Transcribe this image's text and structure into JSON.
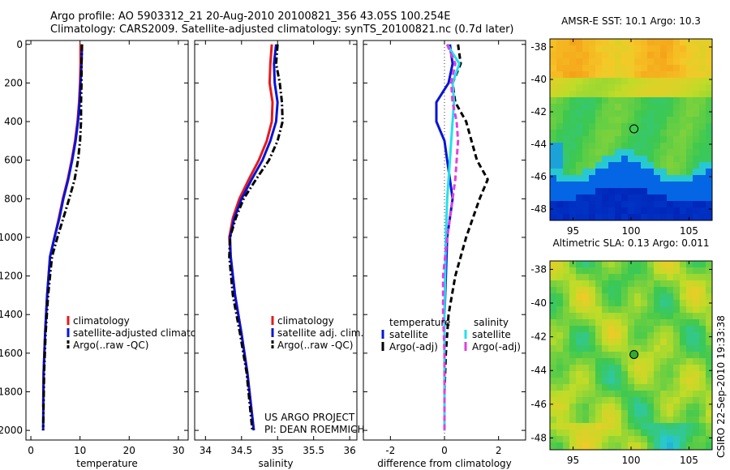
{
  "header": {
    "title_line1": "Argo profile: AO 5903312_21 20-Aug-2010 20100821_356 43.05S 100.254E",
    "title_line2": "Climatology: CARS2009. Satellite-adjusted climatology: synTS_20100821.nc (0.7d later)"
  },
  "project_credit": [
    "US ARGO PROJECT",
    "PI: DEAN ROEMMICH"
  ],
  "side_stamp": "CSIRO 22-Sep-2010 19:33:38",
  "colors": {
    "climatology": "#e41a1c",
    "satellite": "#0a14d6",
    "argo": "#000000",
    "satellite_salinity": "#22e0ee",
    "argo_salinity_adj": "#e040e0"
  },
  "chart_data": [
    {
      "type": "line",
      "id": "temperature",
      "xlabel": "temperature",
      "ylabel": "",
      "xlim": [
        -1,
        32
      ],
      "ylim": [
        2050,
        -20
      ],
      "xticks": [
        0,
        10,
        20,
        30
      ],
      "yticks": [
        0,
        200,
        400,
        600,
        800,
        1000,
        1200,
        1400,
        1600,
        1800,
        2000
      ],
      "legend_position": "lower-right",
      "series": [
        {
          "name": "climatology",
          "color": "#e41a1c",
          "style": "solid",
          "x": [
            10.1,
            10.1,
            10.0,
            9.8,
            9.5,
            9.0,
            8.3,
            7.5,
            6.5,
            5.7,
            4.8,
            3.9,
            3.3,
            2.9,
            2.6,
            2.5
          ],
          "y": [
            0,
            100,
            200,
            300,
            400,
            500,
            600,
            700,
            800,
            900,
            1000,
            1100,
            1300,
            1500,
            1700,
            1880
          ]
        },
        {
          "name": "satellite-adjusted climatology",
          "color": "#0a14d6",
          "style": "solid",
          "x": [
            10.4,
            10.3,
            10.1,
            9.9,
            9.6,
            9.1,
            8.4,
            7.6,
            6.6,
            5.8,
            4.8,
            3.9,
            3.3,
            2.9,
            2.6,
            2.5
          ],
          "y": [
            0,
            100,
            200,
            300,
            400,
            500,
            600,
            700,
            800,
            900,
            1000,
            1100,
            1300,
            1500,
            1700,
            2000
          ]
        },
        {
          "name": "Argo(..raw -QC)",
          "color": "#000000",
          "style": "dashdot",
          "x": [
            10.4,
            10.3,
            10.3,
            10.2,
            10.2,
            10.0,
            9.6,
            8.9,
            7.8,
            6.6,
            5.4,
            4.3,
            3.5,
            3.0,
            2.7,
            2.5
          ],
          "y": [
            0,
            100,
            200,
            300,
            400,
            500,
            600,
            700,
            800,
            900,
            1000,
            1100,
            1300,
            1500,
            1700,
            2000
          ]
        }
      ]
    },
    {
      "type": "line",
      "id": "salinity",
      "xlabel": "salinity",
      "ylabel": "",
      "xlim": [
        33.85,
        36.1
      ],
      "ylim": [
        2050,
        -20
      ],
      "xticks": [
        34,
        34.5,
        35,
        35.5,
        36
      ],
      "yticks": [
        0,
        200,
        400,
        600,
        800,
        1000,
        1200,
        1400,
        1600,
        1800,
        2000
      ],
      "legend_position": "lower-right",
      "series": [
        {
          "name": "climatology",
          "color": "#e41a1c",
          "style": "solid",
          "x": [
            34.92,
            34.9,
            34.89,
            34.93,
            34.92,
            34.85,
            34.74,
            34.6,
            34.47,
            34.38,
            34.33,
            34.35,
            34.41,
            34.5,
            34.58,
            34.67
          ],
          "y": [
            0,
            100,
            200,
            300,
            400,
            500,
            600,
            700,
            800,
            900,
            1000,
            1100,
            1300,
            1500,
            1700,
            2000
          ]
        },
        {
          "name": "satellite adj. clim.",
          "color": "#0a14d6",
          "style": "solid",
          "x": [
            34.98,
            34.95,
            34.96,
            35.0,
            34.98,
            34.9,
            34.79,
            34.64,
            34.5,
            34.4,
            34.34,
            34.35,
            34.41,
            34.5,
            34.58,
            34.67
          ],
          "y": [
            0,
            100,
            200,
            300,
            400,
            500,
            600,
            700,
            800,
            900,
            1000,
            1100,
            1300,
            1500,
            1700,
            2000
          ]
        },
        {
          "name": "Argo(..raw -QC)",
          "color": "#000000",
          "style": "dashdot",
          "x": [
            35.0,
            34.98,
            35.03,
            35.06,
            35.07,
            35.0,
            34.88,
            34.7,
            34.53,
            34.42,
            34.34,
            34.33,
            34.38,
            34.48,
            34.57,
            34.65
          ],
          "y": [
            0,
            100,
            200,
            300,
            400,
            500,
            600,
            700,
            800,
            900,
            1000,
            1100,
            1300,
            1500,
            1700,
            2000
          ]
        }
      ]
    },
    {
      "type": "line",
      "id": "difference",
      "xlabel": "difference from climatology",
      "ylabel": "",
      "xlim": [
        -3,
        3
      ],
      "ylim": [
        2050,
        -20
      ],
      "xticks": [
        -2,
        0,
        2
      ],
      "yticks": [
        0,
        200,
        400,
        600,
        800,
        1000,
        1200,
        1400,
        1600,
        1800,
        2000
      ],
      "legend_position": "lower-center",
      "legend_groups": [
        "temperature",
        "salinity"
      ],
      "series": [
        {
          "name": "satellite",
          "group": "temperature",
          "color": "#0a14d6",
          "style": "solid",
          "x": [
            0.2,
            0.3,
            0.15,
            -0.3,
            -0.3,
            0.0,
            0.1,
            0.2,
            0.3,
            0.1,
            0.05,
            0.0,
            0.0,
            0.0,
            0.0
          ],
          "y": [
            0,
            100,
            200,
            300,
            400,
            500,
            600,
            700,
            800,
            1000,
            1200,
            1400,
            1600,
            1800,
            2000
          ]
        },
        {
          "name": "Argo(-adj)",
          "group": "temperature",
          "color": "#000000",
          "style": "dashed",
          "x": [
            0.5,
            0.6,
            0.3,
            0.4,
            0.8,
            1.0,
            1.2,
            1.6,
            1.3,
            0.8,
            0.4,
            0.15,
            0.05,
            0.0,
            0.0
          ],
          "y": [
            0,
            100,
            200,
            300,
            400,
            500,
            600,
            700,
            800,
            1000,
            1200,
            1400,
            1600,
            1800,
            2000
          ]
        },
        {
          "name": "satellite",
          "group": "salinity",
          "color": "#22e0ee",
          "style": "solid",
          "x": [
            0.1,
            0.55,
            0.3,
            0.35,
            0.3,
            0.25,
            0.2,
            0.15,
            0.1,
            0.05,
            0.02,
            0.0,
            0.0,
            0.0,
            0.0
          ],
          "y": [
            0,
            100,
            200,
            300,
            400,
            500,
            600,
            700,
            800,
            1000,
            1200,
            1400,
            1600,
            1800,
            2000
          ]
        },
        {
          "name": "Argo(-adj)",
          "group": "salinity",
          "color": "#e040e0",
          "style": "dashed",
          "x": [
            0.1,
            0.4,
            0.25,
            0.3,
            0.45,
            0.5,
            0.45,
            0.4,
            0.3,
            0.1,
            -0.05,
            -0.05,
            0.0,
            0.0,
            0.0
          ],
          "y": [
            0,
            100,
            200,
            300,
            400,
            500,
            600,
            700,
            800,
            1000,
            1200,
            1400,
            1600,
            1800,
            2000
          ]
        }
      ]
    },
    {
      "type": "heatmap",
      "id": "sst_map",
      "title": "AMSR-E SST: 10.1 Argo: 10.3",
      "xlim": [
        93,
        107
      ],
      "ylim": [
        -48.7,
        -37.5
      ],
      "xticks": [
        95,
        100,
        105
      ],
      "yticks": [
        -38,
        -40,
        -42,
        -44,
        -46,
        -48
      ],
      "marker": {
        "lon": 100.254,
        "lat": -43.05
      }
    },
    {
      "type": "heatmap",
      "id": "sla_map",
      "title": "Altimetric SLA: 0.13 Argo: 0.011",
      "xlim": [
        93,
        107
      ],
      "ylim": [
        -48.7,
        -37.5
      ],
      "xticks": [
        95,
        100,
        105
      ],
      "yticks": [
        -38,
        -40,
        -42,
        -44,
        -46,
        -48
      ],
      "marker": {
        "lon": 100.254,
        "lat": -43.05
      }
    }
  ]
}
